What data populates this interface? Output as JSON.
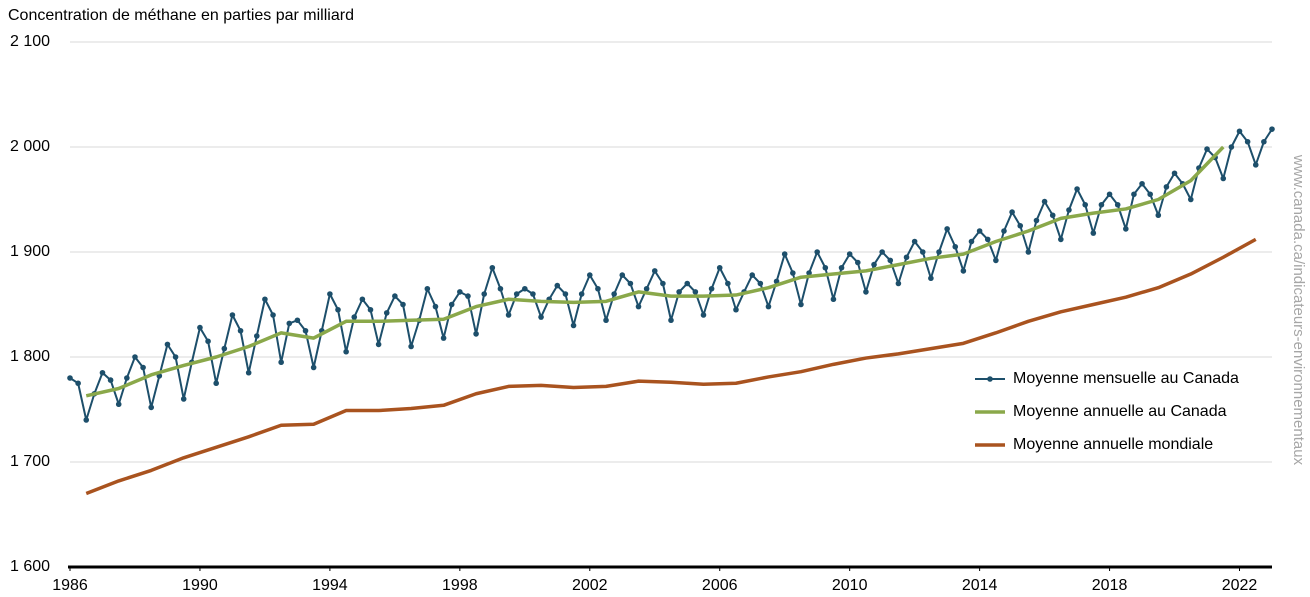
{
  "chart_data": {
    "type": "line",
    "y_label": "Concentration de méthane en parties par milliard",
    "source_url": "www.canada.ca/indicateurs-environnementaux",
    "xlim": [
      1986,
      2023
    ],
    "xticks": [
      1986,
      1990,
      1994,
      1998,
      2002,
      2006,
      2010,
      2014,
      2018,
      2022
    ],
    "ylim": [
      1600,
      2100
    ],
    "yticks": [
      {
        "value": 1600,
        "label": "1 600"
      },
      {
        "value": 1700,
        "label": "1 700"
      },
      {
        "value": 1800,
        "label": "1 800"
      },
      {
        "value": 1900,
        "label": "1 900"
      },
      {
        "value": 2000,
        "label": "2 000"
      },
      {
        "value": 2100,
        "label": "2 100"
      }
    ],
    "grid": true,
    "legend": "right",
    "series": [
      {
        "name": "Moyenne mensuelle au Canada",
        "color": "#1d4f6b",
        "markers": true,
        "x": [
          1986,
          1986.25,
          1986.5,
          1986.75,
          1987,
          1987.25,
          1987.5,
          1987.75,
          1988,
          1988.25,
          1988.5,
          1988.75,
          1989,
          1989.25,
          1989.5,
          1989.75,
          1990,
          1990.25,
          1990.5,
          1990.75,
          1991,
          1991.25,
          1991.5,
          1991.75,
          1992,
          1992.25,
          1992.5,
          1992.75,
          1993,
          1993.25,
          1993.5,
          1993.75,
          1994,
          1994.25,
          1994.5,
          1994.75,
          1995,
          1995.25,
          1995.5,
          1995.75,
          1996,
          1996.25,
          1996.5,
          1996.75,
          1997,
          1997.25,
          1997.5,
          1997.75,
          1998,
          1998.25,
          1998.5,
          1998.75,
          1999,
          1999.25,
          1999.5,
          1999.75,
          2000,
          2000.25,
          2000.5,
          2000.75,
          2001,
          2001.25,
          2001.5,
          2001.75,
          2002,
          2002.25,
          2002.5,
          2002.75,
          2003,
          2003.25,
          2003.5,
          2003.75,
          2004,
          2004.25,
          2004.5,
          2004.75,
          2005,
          2005.25,
          2005.5,
          2005.75,
          2006,
          2006.25,
          2006.5,
          2006.75,
          2007,
          2007.25,
          2007.5,
          2007.75,
          2008,
          2008.25,
          2008.5,
          2008.75,
          2009,
          2009.25,
          2009.5,
          2009.75,
          2010,
          2010.25,
          2010.5,
          2010.75,
          2011,
          2011.25,
          2011.5,
          2011.75,
          2012,
          2012.25,
          2012.5,
          2012.75,
          2013,
          2013.25,
          2013.5,
          2013.75,
          2014,
          2014.25,
          2014.5,
          2014.75,
          2015,
          2015.25,
          2015.5,
          2015.75,
          2016,
          2016.25,
          2016.5,
          2016.75,
          2017,
          2017.25,
          2017.5,
          2017.75,
          2018,
          2018.25,
          2018.5,
          2018.75,
          2019,
          2019.25,
          2019.5,
          2019.75,
          2020,
          2020.25,
          2020.5,
          2020.75,
          2021,
          2021.25,
          2021.5,
          2021.75,
          2022,
          2022.25,
          2022.5,
          2022.75,
          2023
        ],
        "values": [
          1780,
          1775,
          1740,
          1765,
          1785,
          1778,
          1755,
          1780,
          1800,
          1790,
          1752,
          1782,
          1812,
          1800,
          1760,
          1795,
          1828,
          1815,
          1775,
          1808,
          1840,
          1825,
          1785,
          1820,
          1855,
          1840,
          1795,
          1832,
          1835,
          1825,
          1790,
          1825,
          1860,
          1845,
          1805,
          1838,
          1855,
          1845,
          1812,
          1842,
          1858,
          1850,
          1810,
          1835,
          1865,
          1848,
          1818,
          1850,
          1862,
          1858,
          1822,
          1860,
          1885,
          1865,
          1840,
          1860,
          1865,
          1860,
          1838,
          1855,
          1868,
          1860,
          1830,
          1860,
          1878,
          1865,
          1835,
          1860,
          1878,
          1870,
          1848,
          1865,
          1882,
          1870,
          1835,
          1862,
          1870,
          1862,
          1840,
          1865,
          1885,
          1870,
          1845,
          1862,
          1878,
          1870,
          1848,
          1872,
          1898,
          1880,
          1850,
          1880,
          1900,
          1885,
          1855,
          1885,
          1898,
          1890,
          1862,
          1888,
          1900,
          1892,
          1870,
          1895,
          1910,
          1900,
          1875,
          1900,
          1922,
          1905,
          1882,
          1910,
          1920,
          1912,
          1892,
          1920,
          1938,
          1925,
          1900,
          1930,
          1948,
          1935,
          1912,
          1940,
          1960,
          1945,
          1918,
          1945,
          1955,
          1945,
          1922,
          1955,
          1965,
          1955,
          1935,
          1962,
          1975,
          1965,
          1950,
          1980,
          1998,
          1990,
          1970,
          2000,
          2015,
          2005,
          1983,
          2005,
          2017
        ]
      },
      {
        "name": "Moyenne annuelle au Canada",
        "color": "#8aa84a",
        "markers": false,
        "x": [
          1986.5,
          1987.5,
          1988.5,
          1989.5,
          1990.5,
          1991.5,
          1992.5,
          1993.5,
          1994.5,
          1995.5,
          1996.5,
          1997.5,
          1998.5,
          1999.5,
          2000.5,
          2001.5,
          2002.5,
          2003.5,
          2004.5,
          2005.5,
          2006.5,
          2007.5,
          2008.5,
          2009.5,
          2010.5,
          2011.5,
          2012.5,
          2013.5,
          2014.5,
          2015.5,
          2016.5,
          2017.5,
          2018.5,
          2019.5,
          2020.5,
          2021.5
        ],
        "values": [
          1763,
          1770,
          1783,
          1792,
          1800,
          1810,
          1823,
          1818,
          1834,
          1834,
          1835,
          1836,
          1848,
          1855,
          1853,
          1852,
          1853,
          1862,
          1858,
          1858,
          1859,
          1866,
          1876,
          1879,
          1882,
          1888,
          1894,
          1898,
          1910,
          1920,
          1932,
          1937,
          1941,
          1950,
          1968,
          2000
        ]
      },
      {
        "name": "Moyenne annuelle mondiale",
        "color": "#a9531f",
        "markers": false,
        "x": [
          1986.5,
          1987.5,
          1988.5,
          1989.5,
          1990.5,
          1991.5,
          1992.5,
          1993.5,
          1994.5,
          1995.5,
          1996.5,
          1997.5,
          1998.5,
          1999.5,
          2000.5,
          2001.5,
          2002.5,
          2003.5,
          2004.5,
          2005.5,
          2006.5,
          2007.5,
          2008.5,
          2009.5,
          2010.5,
          2011.5,
          2012.5,
          2013.5,
          2014.5,
          2015.5,
          2016.5,
          2017.5,
          2018.5,
          2019.5,
          2020.5,
          2021.5,
          2022.5
        ],
        "values": [
          1670,
          1682,
          1692,
          1704,
          1714,
          1724,
          1735,
          1736,
          1749,
          1749,
          1751,
          1754,
          1765,
          1772,
          1773,
          1771,
          1772,
          1777,
          1776,
          1774,
          1775,
          1781,
          1786,
          1793,
          1799,
          1803,
          1808,
          1813,
          1823,
          1834,
          1843,
          1850,
          1857,
          1866,
          1879,
          1895,
          1912
        ]
      }
    ]
  }
}
